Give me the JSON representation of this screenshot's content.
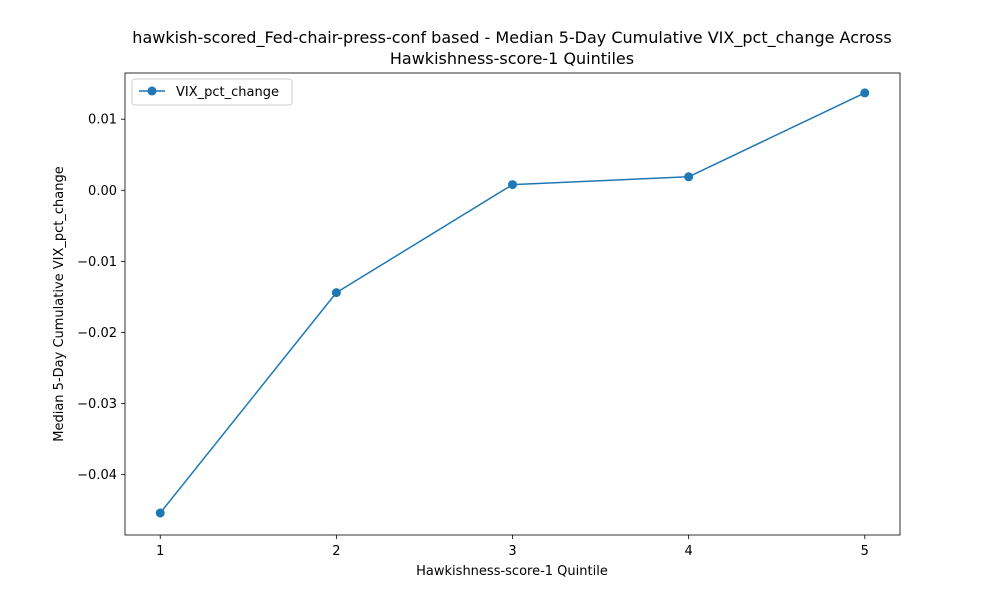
{
  "chart_data": {
    "type": "line",
    "title_line1": "hawkish-scored_Fed-chair-press-conf based - Median 5-Day Cumulative VIX_pct_change Across",
    "title_line2": "Hawkishness-score-1 Quintiles",
    "xlabel": "Hawkishness-score-1 Quintile",
    "ylabel": "Median 5-Day Cumulative VIX_pct_change",
    "x": [
      1,
      2,
      3,
      4,
      5
    ],
    "x_tick_labels": [
      "1",
      "2",
      "3",
      "4",
      "5"
    ],
    "y_ticks": [
      -0.04,
      -0.03,
      -0.02,
      -0.01,
      0.0,
      0.01
    ],
    "y_tick_labels": [
      "−0.04",
      "−0.03",
      "−0.02",
      "−0.01",
      "0.00",
      "0.01"
    ],
    "xlim": [
      0.8,
      5.2
    ],
    "ylim": [
      -0.0485,
      0.0165
    ],
    "grid": false,
    "legend_position": "top-left",
    "series": [
      {
        "name": "VIX_pct_change",
        "color": "#1f77b4",
        "marker": "circle",
        "values": [
          -0.0454,
          -0.0144,
          0.0008,
          0.0019,
          0.0137
        ]
      }
    ]
  }
}
